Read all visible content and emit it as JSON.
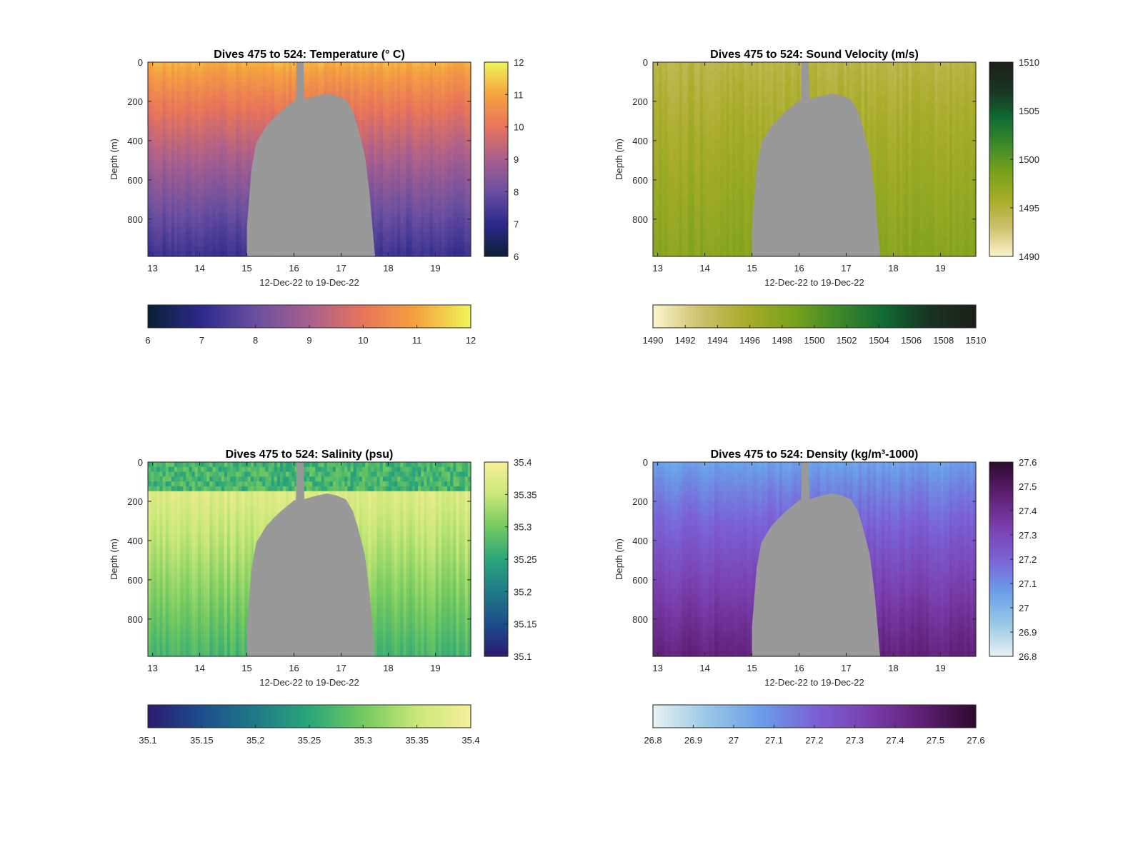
{
  "figure": {
    "background": "#ffffff",
    "nodata_color": "#999999"
  },
  "chart_data": [
    {
      "type": "heatmap",
      "title": "Dives 475 to 524: Temperature (° C)",
      "xlabel": "12-Dec-22 to 19-Dec-22",
      "ylabel": "Depth (m)",
      "x_ticks": [
        "13",
        "14",
        "15",
        "16",
        "17",
        "18",
        "19"
      ],
      "x_tick_values": [
        13,
        14,
        15,
        16,
        17,
        18,
        19
      ],
      "xlim": [
        12.9,
        19.75
      ],
      "y_ticks": [
        "0",
        "200",
        "400",
        "600",
        "800"
      ],
      "y_tick_values": [
        0,
        200,
        400,
        600,
        800
      ],
      "ylim": [
        0,
        990
      ],
      "y_reversed": true,
      "colormap": [
        "#0a1f33",
        "#2c2a8c",
        "#6a4fa0",
        "#a85f8e",
        "#e8745a",
        "#f5a33f",
        "#eff559"
      ],
      "clim": [
        6,
        12
      ],
      "surface_value": 11.2,
      "deep_value": 7.2,
      "colorbar_vertical": {
        "ticks": [
          "6",
          "7",
          "8",
          "9",
          "10",
          "11",
          "12"
        ],
        "values": [
          6,
          7,
          8,
          9,
          10,
          11,
          12
        ]
      },
      "colorbar_horizontal": {
        "ticks": [
          "6",
          "7",
          "8",
          "9",
          "10",
          "11",
          "12"
        ],
        "values": [
          6,
          7,
          8,
          9,
          10,
          11,
          12
        ]
      }
    },
    {
      "type": "heatmap",
      "title": "Dives 475 to 524: Sound Velocity (m/s)",
      "xlabel": "12-Dec-22 to 19-Dec-22",
      "ylabel": "Depth (m)",
      "x_ticks": [
        "13",
        "14",
        "15",
        "16",
        "17",
        "18",
        "19"
      ],
      "x_tick_values": [
        13,
        14,
        15,
        16,
        17,
        18,
        19
      ],
      "xlim": [
        12.9,
        19.75
      ],
      "y_ticks": [
        "0",
        "200",
        "400",
        "600",
        "800"
      ],
      "y_tick_values": [
        0,
        200,
        400,
        600,
        800
      ],
      "ylim": [
        0,
        990
      ],
      "y_reversed": true,
      "colormap": [
        "#fbf6cc",
        "#cfc170",
        "#a9ad2a",
        "#7ba21b",
        "#3f8a2a",
        "#0f6a33",
        "#1a3322",
        "#1b2018"
      ],
      "clim": [
        1490,
        1510
      ],
      "surface_value": 1494.5,
      "deep_value": 1497.8,
      "colorbar_vertical": {
        "ticks": [
          "1490",
          "1495",
          "1500",
          "1505",
          "1510"
        ],
        "values": [
          1490,
          1495,
          1500,
          1505,
          1510
        ]
      },
      "colorbar_horizontal": {
        "ticks": [
          "1490",
          "1492",
          "1494",
          "1496",
          "1498",
          "1500",
          "1502",
          "1504",
          "1506",
          "1508",
          "1510"
        ],
        "values": [
          1490,
          1492,
          1494,
          1496,
          1498,
          1500,
          1502,
          1504,
          1506,
          1508,
          1510
        ]
      }
    },
    {
      "type": "heatmap",
      "title": "Dives 475 to 524: Salinity (psu)",
      "xlabel": "12-Dec-22 to 19-Dec-22",
      "ylabel": "Depth (m)",
      "x_ticks": [
        "13",
        "14",
        "15",
        "16",
        "17",
        "18",
        "19"
      ],
      "x_tick_values": [
        13,
        14,
        15,
        16,
        17,
        18,
        19
      ],
      "xlim": [
        12.9,
        19.75
      ],
      "y_ticks": [
        "0",
        "200",
        "400",
        "600",
        "800"
      ],
      "y_tick_values": [
        0,
        200,
        400,
        600,
        800
      ],
      "ylim": [
        0,
        990
      ],
      "y_reversed": true,
      "colormap": [
        "#2b1a6e",
        "#1d4e8c",
        "#1f7a86",
        "#2aa67a",
        "#73c95f",
        "#c9e878",
        "#f7ef9a"
      ],
      "clim": [
        35.1,
        35.4
      ],
      "surface_value": 35.27,
      "mid_value": 35.37,
      "deep_value": 35.27,
      "colorbar_vertical": {
        "ticks": [
          "35.1",
          "35.15",
          "35.2",
          "35.25",
          "35.3",
          "35.35",
          "35.4"
        ],
        "values": [
          35.1,
          35.15,
          35.2,
          35.25,
          35.3,
          35.35,
          35.4
        ]
      },
      "colorbar_horizontal": {
        "ticks": [
          "35.1",
          "35.15",
          "35.2",
          "35.25",
          "35.3",
          "35.35",
          "35.4"
        ],
        "values": [
          35.1,
          35.15,
          35.2,
          35.25,
          35.3,
          35.35,
          35.4
        ]
      }
    },
    {
      "type": "heatmap",
      "title": "Dives 475 to 524: Density (kg/m³-1000)",
      "xlabel": "12-Dec-22 to 19-Dec-22",
      "ylabel": "Depth (m)",
      "x_ticks": [
        "13",
        "14",
        "15",
        "16",
        "17",
        "18",
        "19"
      ],
      "x_tick_values": [
        13,
        14,
        15,
        16,
        17,
        18,
        19
      ],
      "xlim": [
        12.9,
        19.75
      ],
      "y_ticks": [
        "0",
        "200",
        "400",
        "600",
        "800"
      ],
      "y_tick_values": [
        0,
        200,
        400,
        600,
        800
      ],
      "ylim": [
        0,
        990
      ],
      "y_reversed": true,
      "colormap": [
        "#e8f2f2",
        "#9ac8e6",
        "#6a9ee8",
        "#7a62d6",
        "#7a3fae",
        "#5e1f74",
        "#2e0a2e"
      ],
      "clim": [
        26.8,
        27.6
      ],
      "surface_value": 27.05,
      "deep_value": 27.45,
      "colorbar_vertical": {
        "ticks": [
          "26.8",
          "26.9",
          "27",
          "27.1",
          "27.2",
          "27.3",
          "27.4",
          "27.5",
          "27.6"
        ],
        "values": [
          26.8,
          26.9,
          27,
          27.1,
          27.2,
          27.3,
          27.4,
          27.5,
          27.6
        ]
      },
      "colorbar_horizontal": {
        "ticks": [
          "26.8",
          "26.9",
          "27",
          "27.1",
          "27.2",
          "27.3",
          "27.4",
          "27.5",
          "27.6"
        ],
        "values": [
          26.8,
          26.9,
          27,
          27.1,
          27.2,
          27.3,
          27.4,
          27.5,
          27.6
        ]
      }
    }
  ]
}
